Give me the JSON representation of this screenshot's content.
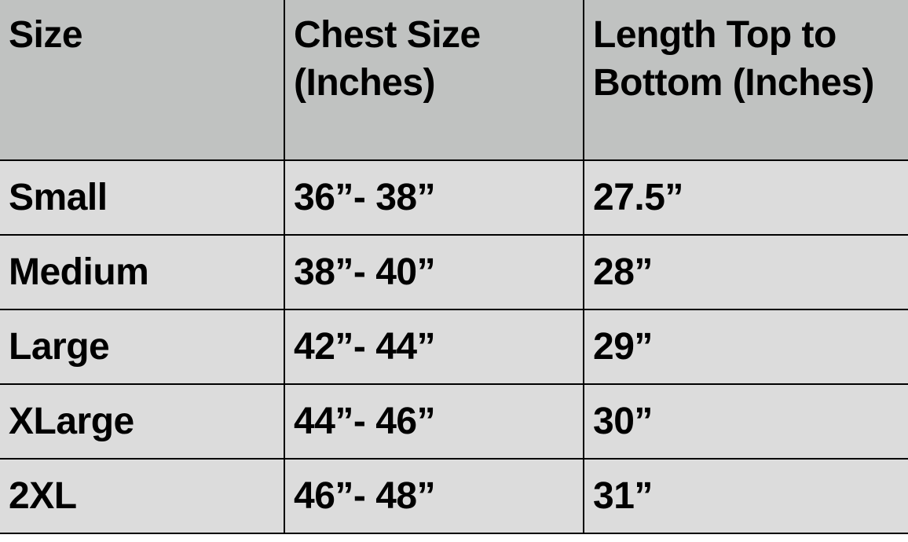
{
  "headers": [
    "Size",
    "Chest Size (Inches)",
    "Length Top to Bottom (Inches)"
  ],
  "rows": [
    [
      "Small",
      "36”- 38”",
      "27.5”"
    ],
    [
      "Medium",
      "38”- 40”",
      "28”"
    ],
    [
      "Large",
      "42”- 44”",
      "29”"
    ],
    [
      "XLarge",
      "44”- 46”",
      "30”"
    ],
    [
      "2XL",
      "46”- 48”",
      "31”"
    ]
  ],
  "colors": {
    "header_bg": "#c0c2c1",
    "row_bg": "#dcdcdc",
    "border": "#000000"
  }
}
